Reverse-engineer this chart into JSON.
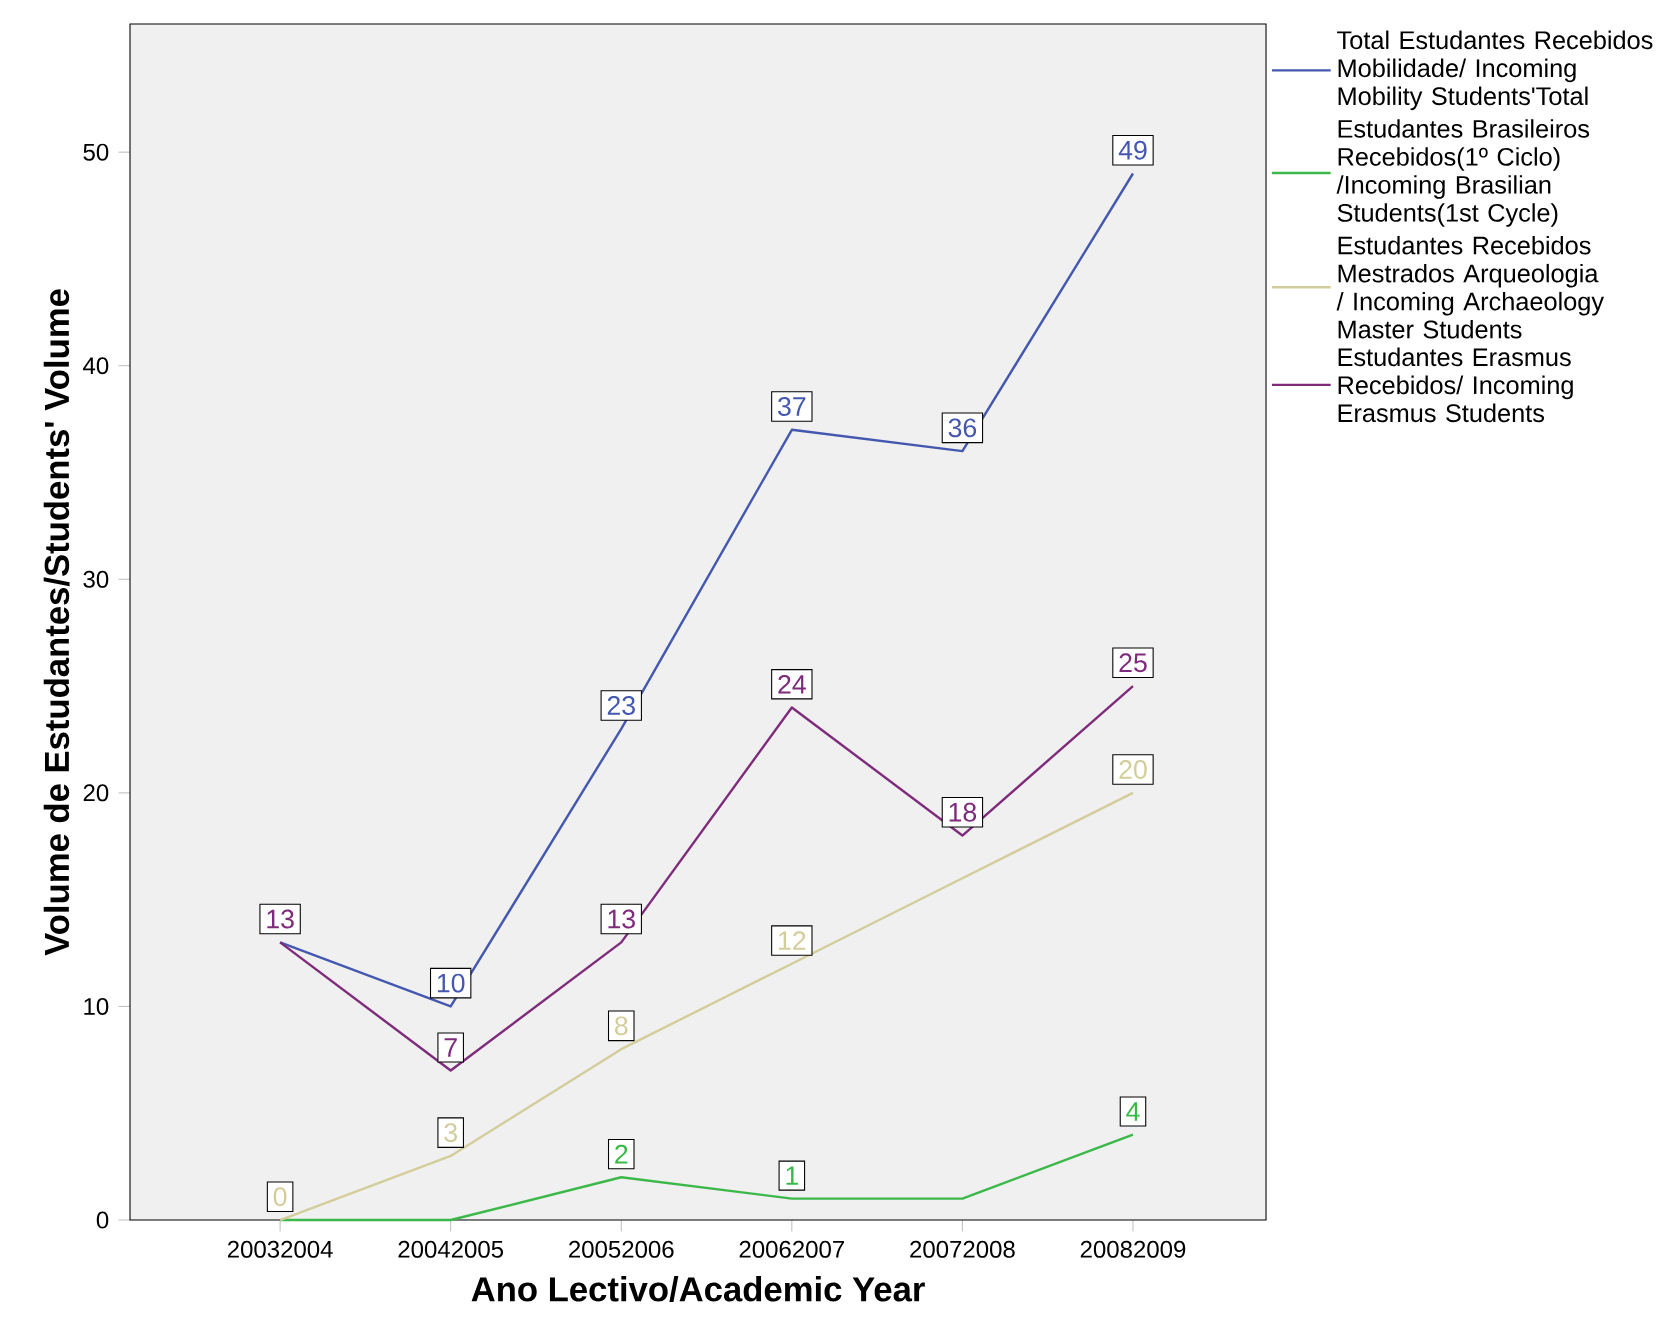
{
  "chart_data": {
    "type": "line",
    "xlabel": "Ano Lectivo/Academic Year",
    "ylabel": "Volume de Estudantes/Students' Volume",
    "categories": [
      "20032004",
      "20042005",
      "20052006",
      "20062007",
      "20072008",
      "20082009"
    ],
    "ylim": [
      0,
      56
    ],
    "yticks": [
      0,
      10,
      20,
      30,
      40,
      50
    ],
    "grid": false,
    "legend": "right",
    "marker": "none",
    "line_style": "solid",
    "series": [
      {
        "name": "Total Estudantes Recebidos Mobilidade/ Incoming Mobility Students'Total",
        "color": "#4558b0",
        "values": [
          13,
          10,
          23,
          37,
          36,
          49
        ],
        "value_labels": [
          null,
          "10",
          "23",
          "37",
          "36",
          "49"
        ]
      },
      {
        "name": "Estudantes Brasileiros Recebidos(1º Ciclo) /Incoming Brasilian Students(1st Cycle)",
        "color": "#3cb84a",
        "values": [
          0,
          0,
          2,
          1,
          1,
          4
        ],
        "value_labels": [
          null,
          null,
          "2",
          "1",
          null,
          "4"
        ]
      },
      {
        "name": "Estudantes Recebidos Mestrados Arqueologia / Incoming Archaeology Master Students",
        "color": "#d2cd9a",
        "values": [
          0,
          3,
          8,
          12,
          16,
          20
        ],
        "value_labels": [
          "0",
          "3",
          "8",
          "12",
          null,
          "20"
        ]
      },
      {
        "name": "Estudantes Erasmus Recebidos/ Incoming Erasmus Students",
        "color": "#7e2b7c",
        "values": [
          13,
          7,
          13,
          24,
          18,
          25
        ],
        "value_labels": [
          "13",
          "7",
          "13",
          "24",
          "18",
          "25"
        ]
      }
    ]
  }
}
